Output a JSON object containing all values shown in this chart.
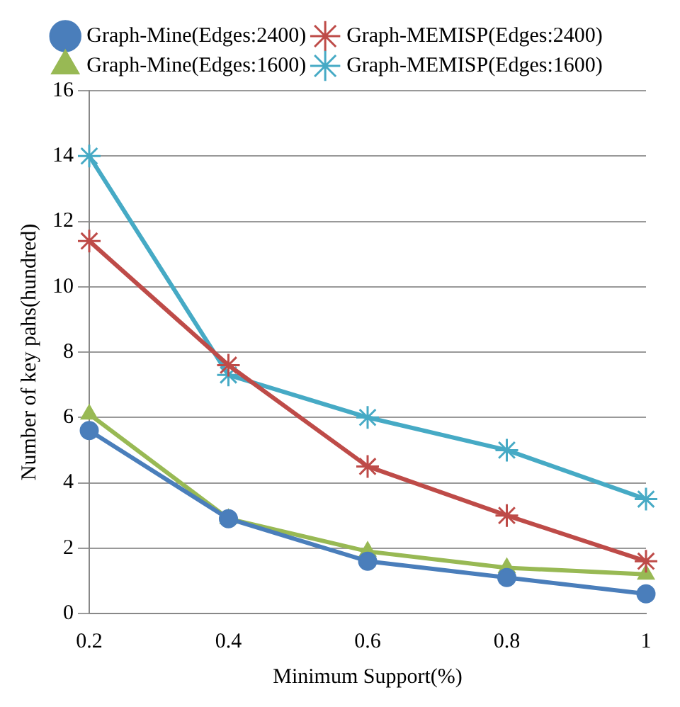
{
  "chart_data": {
    "type": "line",
    "xlabel": "Minimum Support(%)",
    "ylabel": "Number of key pahs(hundred)",
    "categories": [
      "0.2",
      "0.4",
      "0.6",
      "0.8",
      "1"
    ],
    "series": [
      {
        "name": "Graph-Mine(Edges:2400)",
        "color": "#4a7ebb",
        "marker": "circle",
        "values": [
          5.6,
          2.9,
          1.6,
          1.1,
          0.6
        ]
      },
      {
        "name": "Graph-MEMISP(Edges:2400)",
        "color": "#be4b48",
        "marker": "cross",
        "values": [
          11.4,
          7.6,
          4.5,
          3.0,
          1.6
        ]
      },
      {
        "name": "Graph-Mine(Edges:1600)",
        "color": "#98b954",
        "marker": "triangle",
        "values": [
          6.1,
          2.9,
          1.9,
          1.4,
          1.2
        ]
      },
      {
        "name": "Graph-MEMISP(Edges:1600)",
        "color": "#46aac5",
        "marker": "cross",
        "values": [
          14.0,
          7.3,
          6.0,
          5.0,
          3.5
        ]
      }
    ],
    "ylim": [
      0,
      16
    ],
    "yticks": [
      0,
      2,
      4,
      6,
      8,
      10,
      12,
      14,
      16
    ],
    "grid": "y",
    "legend": "top"
  }
}
